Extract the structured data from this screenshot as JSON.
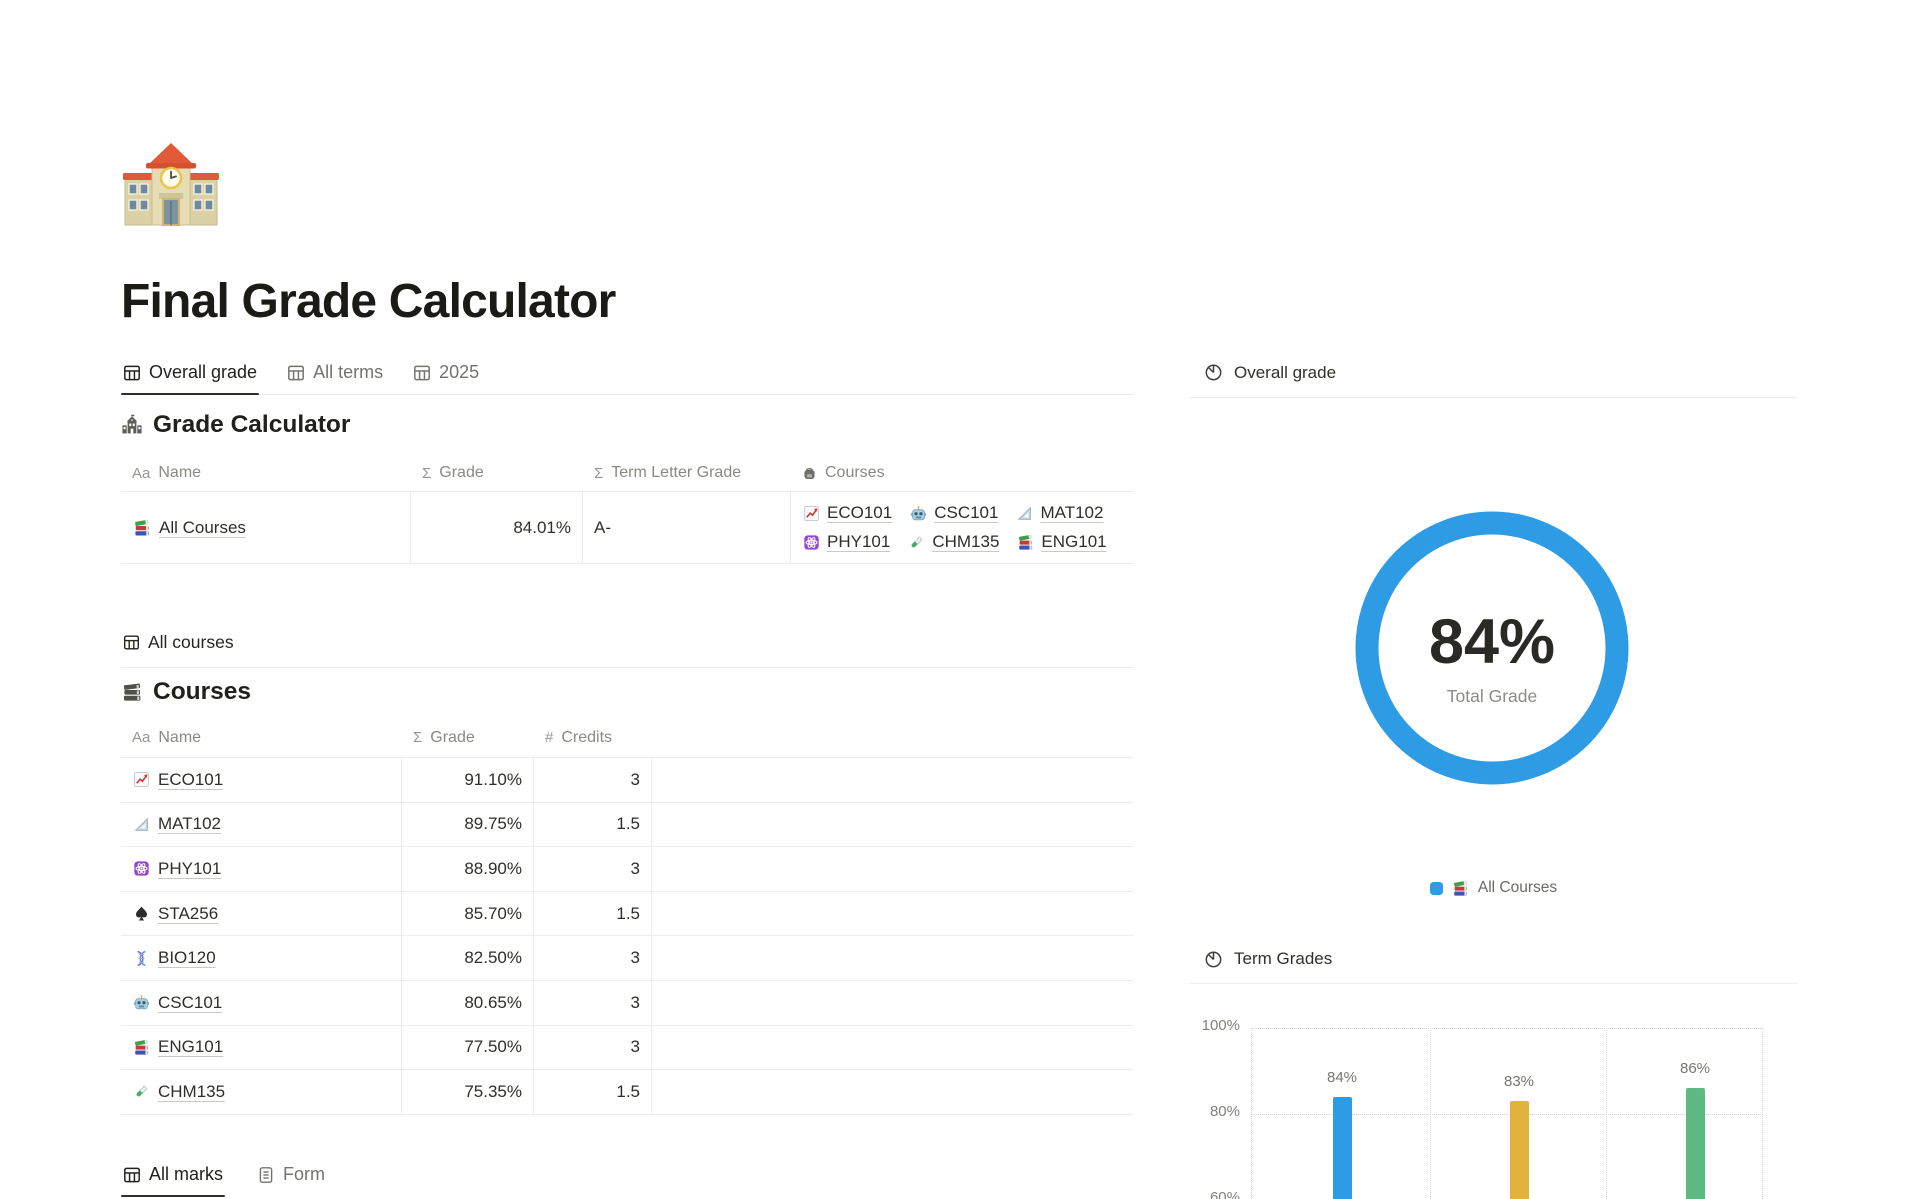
{
  "page": {
    "title": "Final Grade Calculator",
    "icon": "school-emoji"
  },
  "top_tabs": [
    {
      "label": "Overall grade",
      "active": true
    },
    {
      "label": "All terms",
      "active": false
    },
    {
      "label": "2025",
      "active": false
    }
  ],
  "grade_calculator": {
    "heading": "Grade Calculator",
    "columns": {
      "name": {
        "glyph": "Aa",
        "label": "Name"
      },
      "grade": {
        "glyph": "Σ",
        "label": "Grade"
      },
      "letter": {
        "glyph": "Σ",
        "label": "Term Letter Grade"
      },
      "courses": {
        "icon": "backpack-icon",
        "label": "Courses"
      }
    },
    "row": {
      "name": "All Courses",
      "icon": "books",
      "grade": "84.01%",
      "letter": "A-",
      "courses": [
        {
          "label": "ECO101",
          "icon": "chart-increasing"
        },
        {
          "label": "CSC101",
          "icon": "robot"
        },
        {
          "label": "MAT102",
          "icon": "triangular-ruler"
        },
        {
          "label": "PHY101",
          "icon": "atom"
        },
        {
          "label": "CHM135",
          "icon": "test-tube"
        },
        {
          "label": "ENG101",
          "icon": "books"
        }
      ]
    }
  },
  "all_courses_tab": {
    "label": "All courses"
  },
  "courses_table": {
    "heading": "Courses",
    "columns": {
      "name": {
        "glyph": "Aa",
        "label": "Name"
      },
      "grade": {
        "glyph": "Σ",
        "label": "Grade"
      },
      "credits": {
        "glyph": "#",
        "label": "Credits"
      }
    },
    "rows": [
      {
        "name": "ECO101",
        "icon": "chart-increasing",
        "grade": "91.10%",
        "credits": "3"
      },
      {
        "name": "MAT102",
        "icon": "triangular-ruler",
        "grade": "89.75%",
        "credits": "1.5"
      },
      {
        "name": "PHY101",
        "icon": "atom",
        "grade": "88.90%",
        "credits": "3"
      },
      {
        "name": "STA256",
        "icon": "spade",
        "grade": "85.70%",
        "credits": "1.5"
      },
      {
        "name": "BIO120",
        "icon": "dna",
        "grade": "82.50%",
        "credits": "3"
      },
      {
        "name": "CSC101",
        "icon": "robot",
        "grade": "80.65%",
        "credits": "3"
      },
      {
        "name": "ENG101",
        "icon": "books",
        "grade": "77.50%",
        "credits": "3"
      },
      {
        "name": "CHM135",
        "icon": "test-tube",
        "grade": "75.35%",
        "credits": "1.5"
      }
    ]
  },
  "bottom_tabs": [
    {
      "label": "All marks",
      "active": true
    },
    {
      "label": "Form",
      "active": false
    }
  ],
  "chart_data": [
    {
      "type": "donut",
      "title": "Overall grade",
      "center_value": "84%",
      "center_label": "Total Grade",
      "series": [
        {
          "name": "All Courses",
          "value": 84,
          "color": "#2E9BE5"
        }
      ],
      "legend_position": "bottom"
    },
    {
      "type": "bar",
      "title": "Term Grades",
      "categories": [
        "",
        "",
        ""
      ],
      "values": [
        84,
        83,
        86
      ],
      "bar_labels": [
        "84%",
        "83%",
        "86%"
      ],
      "colors": [
        "#2E9BE5",
        "#E2B33C",
        "#5FB982"
      ],
      "yticks": [
        100,
        80,
        60
      ],
      "grid": "dotted",
      "legend_position": "none"
    }
  ],
  "colors": {
    "accent_blue": "#2E9BE5",
    "bar_yellow": "#E2B33C",
    "bar_green": "#5FB982"
  }
}
